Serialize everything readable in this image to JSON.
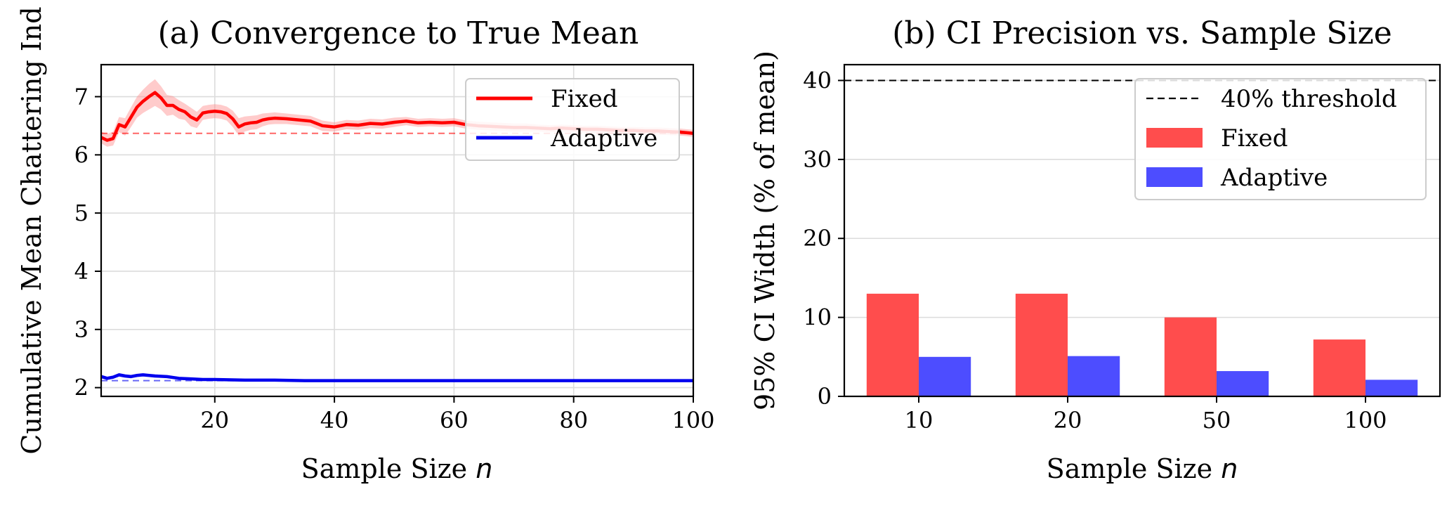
{
  "chart_data": [
    {
      "type": "line",
      "title": "(a) Convergence to True Mean",
      "xlabel": "Sample Size",
      "xlabel_var": "n",
      "ylabel": "Cumulative Mean Chattering Ind",
      "xlim": [
        1,
        100
      ],
      "ylim": [
        1.85,
        7.55
      ],
      "xticks": [
        20,
        40,
        60,
        80,
        100
      ],
      "yticks": [
        2,
        3,
        4,
        5,
        6,
        7
      ],
      "grid": true,
      "legend": "top-right",
      "series": [
        {
          "name": "Fixed",
          "color": "#ff0000",
          "band_color": "#ff8c8c",
          "true_mean": 6.37,
          "x": [
            1,
            2,
            3,
            4,
            5,
            6,
            7,
            8,
            9,
            10,
            11,
            12,
            13,
            14,
            15,
            16,
            17,
            18,
            19,
            20,
            21,
            22,
            23,
            24,
            25,
            26,
            27,
            28,
            29,
            30,
            32,
            34,
            36,
            38,
            40,
            42,
            44,
            46,
            48,
            50,
            52,
            54,
            56,
            58,
            60,
            62,
            64,
            66,
            68,
            70,
            72,
            74,
            76,
            78,
            80,
            82,
            84,
            86,
            88,
            90,
            92,
            94,
            96,
            98,
            100
          ],
          "y": [
            6.3,
            6.25,
            6.28,
            6.52,
            6.48,
            6.65,
            6.82,
            6.92,
            7.0,
            7.07,
            6.98,
            6.85,
            6.85,
            6.78,
            6.74,
            6.65,
            6.6,
            6.72,
            6.74,
            6.75,
            6.74,
            6.71,
            6.62,
            6.48,
            6.53,
            6.55,
            6.56,
            6.6,
            6.62,
            6.63,
            6.62,
            6.6,
            6.58,
            6.5,
            6.48,
            6.52,
            6.51,
            6.54,
            6.53,
            6.56,
            6.58,
            6.55,
            6.56,
            6.55,
            6.56,
            6.52,
            6.5,
            6.49,
            6.48,
            6.47,
            6.47,
            6.46,
            6.45,
            6.46,
            6.45,
            6.44,
            6.44,
            6.43,
            6.42,
            6.42,
            6.41,
            6.41,
            6.4,
            6.39,
            6.37
          ],
          "ci_halfwidth": [
            0.1,
            0.11,
            0.12,
            0.13,
            0.15,
            0.17,
            0.18,
            0.2,
            0.22,
            0.23,
            0.2,
            0.18,
            0.16,
            0.16,
            0.14,
            0.16,
            0.14,
            0.12,
            0.12,
            0.12,
            0.12,
            0.12,
            0.14,
            0.15,
            0.13,
            0.12,
            0.12,
            0.11,
            0.1,
            0.1,
            0.09,
            0.09,
            0.09,
            0.09,
            0.08,
            0.08,
            0.08,
            0.08,
            0.08,
            0.08,
            0.07,
            0.07,
            0.07,
            0.07,
            0.07,
            0.07,
            0.07,
            0.07,
            0.07,
            0.07,
            0.07,
            0.06,
            0.06,
            0.06,
            0.06,
            0.06,
            0.06,
            0.06,
            0.06,
            0.06,
            0.06,
            0.06,
            0.06,
            0.06,
            0.06
          ]
        },
        {
          "name": "Adaptive",
          "color": "#0000ee",
          "band_color": "#8c8cff",
          "true_mean": 2.12,
          "x": [
            1,
            2,
            3,
            4,
            5,
            6,
            7,
            8,
            9,
            10,
            12,
            14,
            16,
            18,
            20,
            25,
            30,
            35,
            40,
            45,
            50,
            55,
            60,
            65,
            70,
            75,
            80,
            85,
            90,
            95,
            100
          ],
          "y": [
            2.19,
            2.16,
            2.18,
            2.22,
            2.2,
            2.19,
            2.21,
            2.22,
            2.21,
            2.2,
            2.19,
            2.16,
            2.15,
            2.14,
            2.14,
            2.13,
            2.13,
            2.12,
            2.12,
            2.12,
            2.12,
            2.12,
            2.12,
            2.12,
            2.12,
            2.12,
            2.12,
            2.12,
            2.12,
            2.12,
            2.12
          ],
          "ci_halfwidth": [
            0.03,
            0.03,
            0.03,
            0.03,
            0.03,
            0.03,
            0.03,
            0.03,
            0.03,
            0.03,
            0.02,
            0.02,
            0.02,
            0.02,
            0.02,
            0.02,
            0.02,
            0.02,
            0.02,
            0.02,
            0.02,
            0.02,
            0.02,
            0.02,
            0.02,
            0.02,
            0.02,
            0.02,
            0.02,
            0.02,
            0.02
          ]
        }
      ]
    },
    {
      "type": "bar",
      "title": "(b) CI Precision vs. Sample Size",
      "xlabel": "Sample Size",
      "xlabel_var": "n",
      "ylabel": "95% CI Width (% of mean)",
      "categories": [
        "10",
        "20",
        "50",
        "100"
      ],
      "ylim": [
        0,
        42
      ],
      "yticks": [
        0,
        10,
        20,
        30,
        40
      ],
      "grid": true,
      "legend": "top-right",
      "threshold": {
        "name": "40% threshold",
        "value": 40,
        "color": "#000000"
      },
      "series": [
        {
          "name": "Fixed",
          "color": "#ff4d4d",
          "values": [
            13.0,
            13.0,
            10.0,
            7.2
          ]
        },
        {
          "name": "Adaptive",
          "color": "#4d4dff",
          "values": [
            5.0,
            5.1,
            3.2,
            2.1
          ]
        }
      ]
    }
  ]
}
